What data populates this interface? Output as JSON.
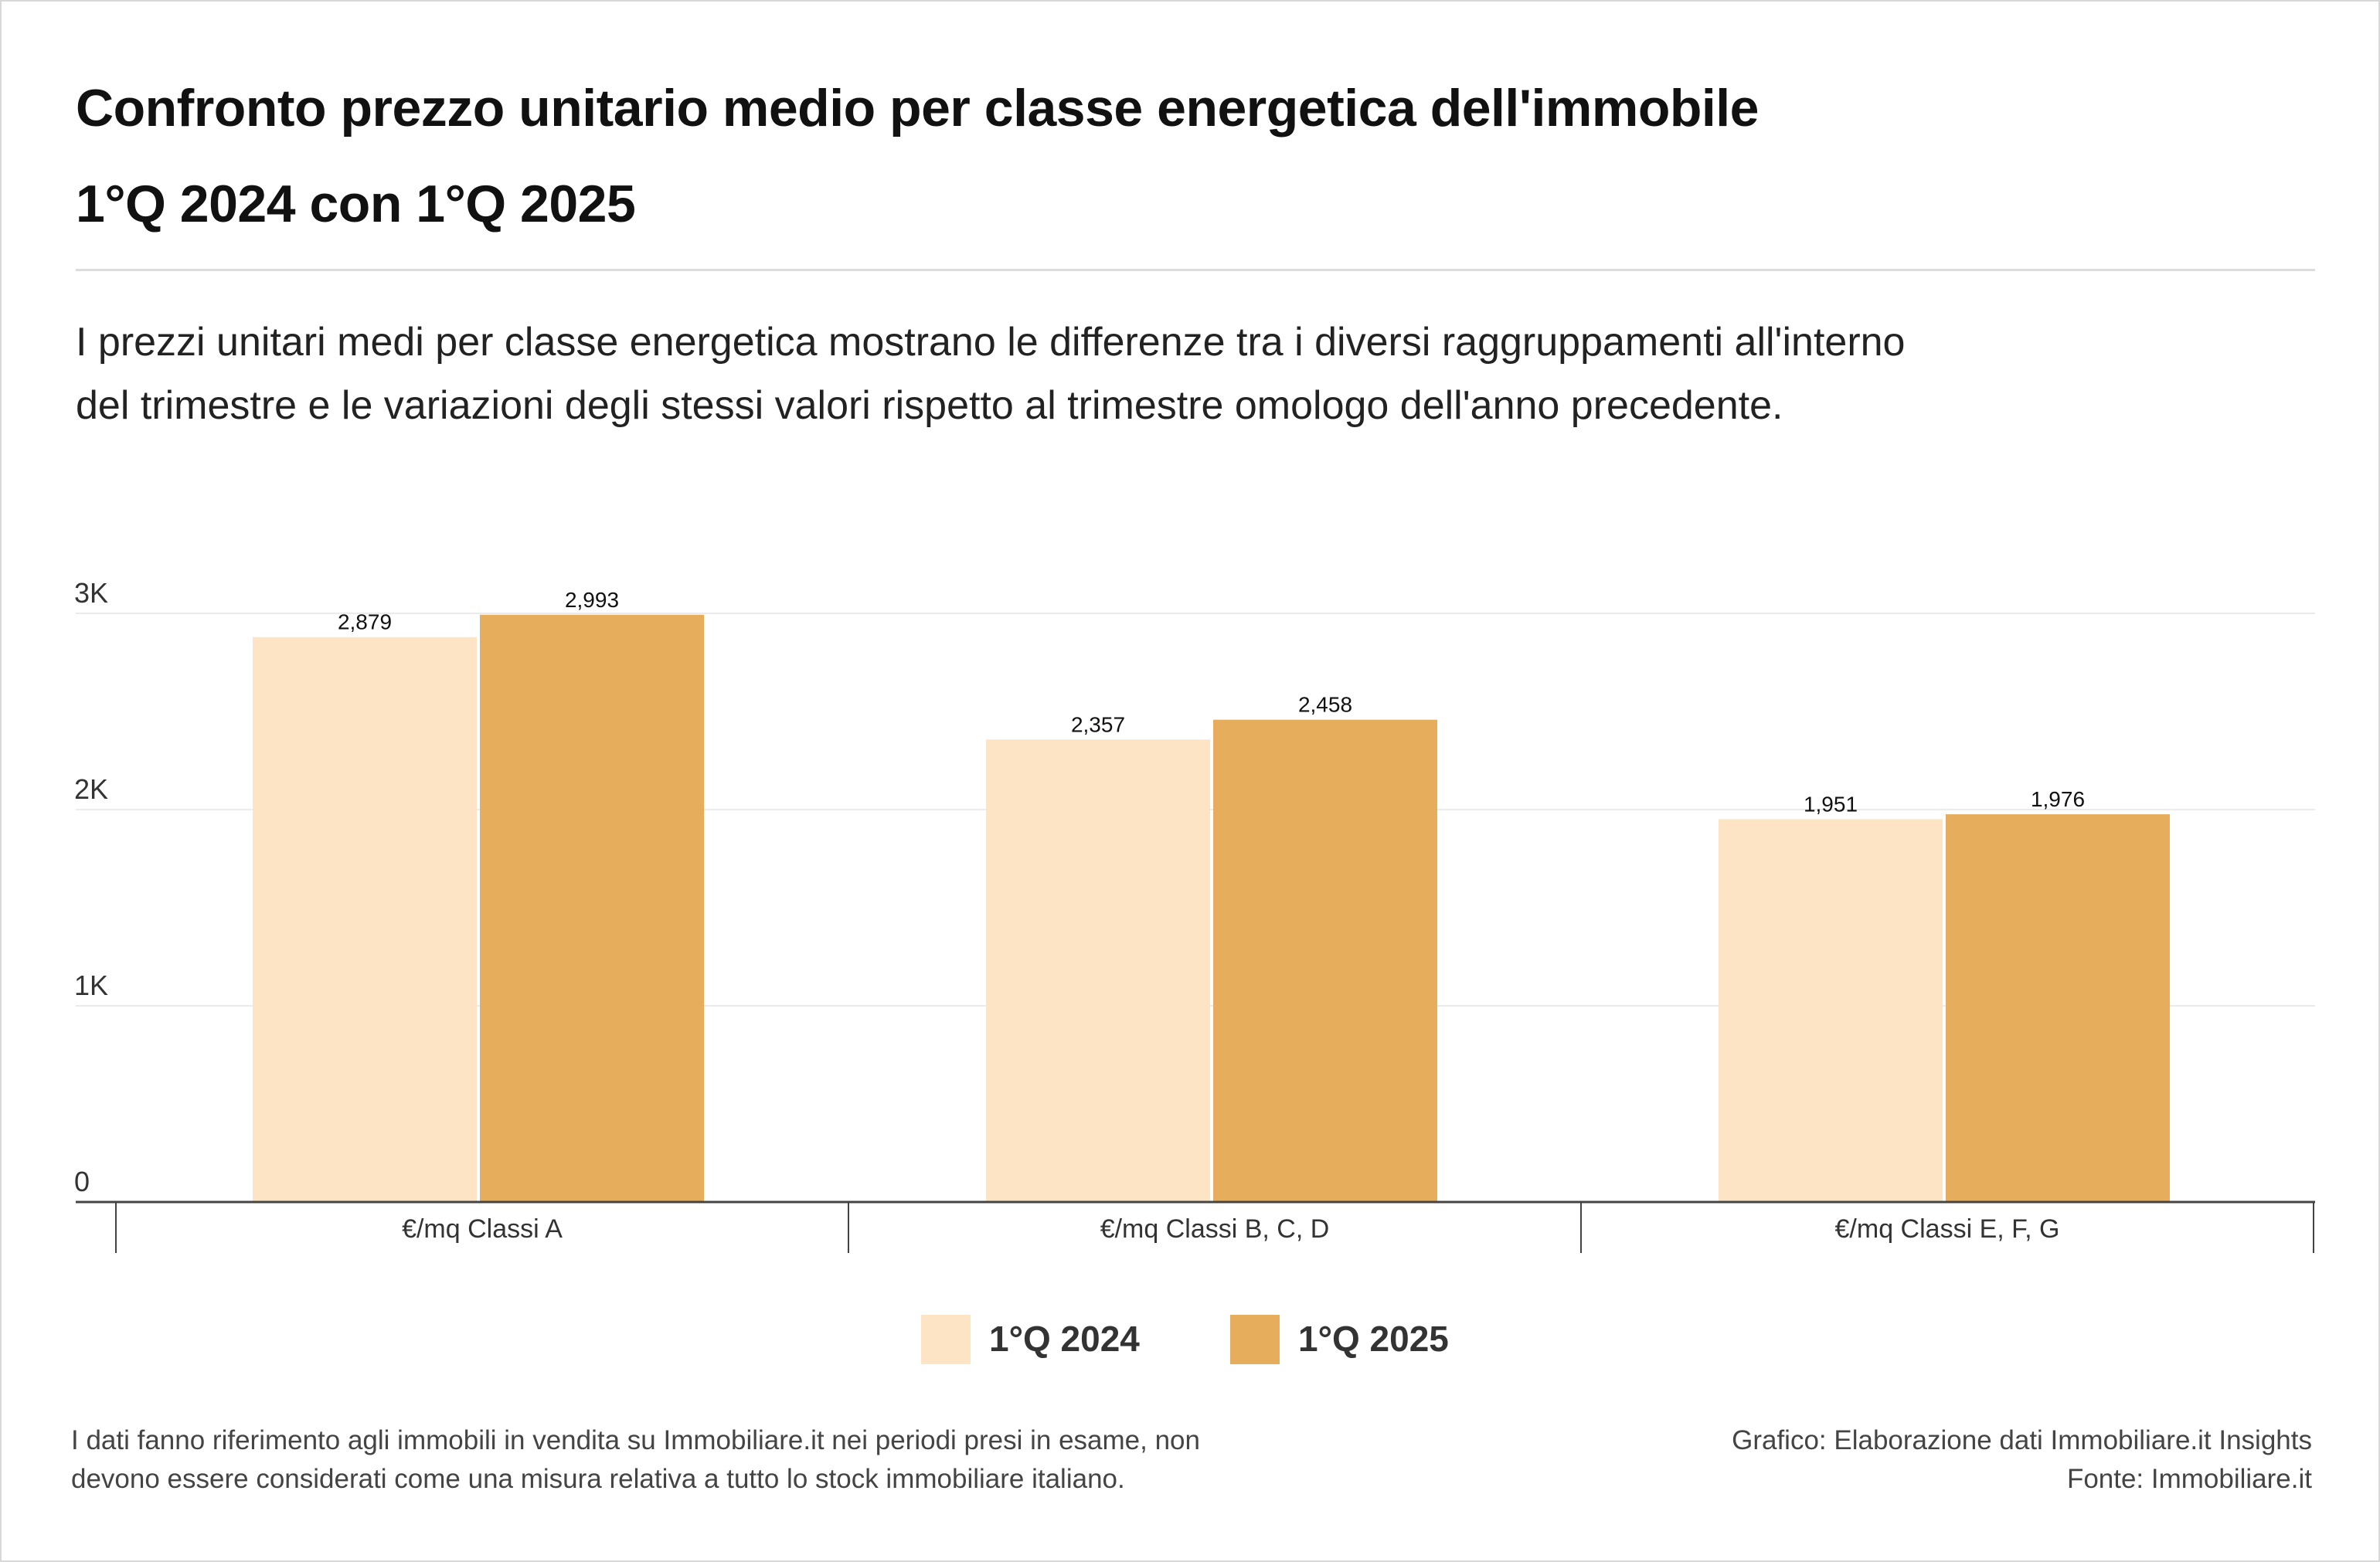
{
  "header": {
    "title_line1": "Confronto prezzo unitario medio per classe energetica dell'immobile",
    "title_line2": "1°Q 2024 con 1°Q 2025",
    "subtitle_line1": "I prezzi unitari medi per classe energetica mostrano le differenze tra i diversi raggruppamenti all'interno",
    "subtitle_line2": "del trimestre e le variazioni degli stessi valori rispetto al trimestre omologo dell'anno precedente."
  },
  "chart_data": {
    "type": "bar",
    "title": "Confronto prezzo unitario medio per classe energetica dell'immobile",
    "categories": [
      "€/mq Classi A",
      "€/mq Classi B, C, D",
      "€/mq Classi E, F, G"
    ],
    "series": [
      {
        "name": "1°Q 2024",
        "values": [
          2879,
          2357,
          1951
        ],
        "labels": [
          "2,879",
          "2,357",
          "1,951"
        ],
        "color": "#fce4c4"
      },
      {
        "name": "1°Q 2025",
        "values": [
          2993,
          2458,
          1976
        ],
        "labels": [
          "2,993",
          "2,458",
          "1,976"
        ],
        "color": "#e5ad5c"
      }
    ],
    "ylim": [
      0,
      3000
    ],
    "yticks": [
      {
        "value": 0,
        "label": "0"
      },
      {
        "value": 1000,
        "label": "1K"
      },
      {
        "value": 2000,
        "label": "2K"
      },
      {
        "value": 3000,
        "label": "3K"
      }
    ],
    "xlabel": "",
    "ylabel": "",
    "grid": true,
    "legend_position": "bottom-center"
  },
  "legend": [
    {
      "label": "1°Q 2024",
      "color": "#fce4c4"
    },
    {
      "label": "1°Q 2025",
      "color": "#e5ad5c"
    }
  ],
  "footer": {
    "note_line1": "I dati fanno riferimento agli immobili in vendita su Immobiliare.it nei periodi presi in esame, non",
    "note_line2": "devono essere considerati come una misura relativa a tutto lo stock immobiliare italiano.",
    "credit_line1": "Grafico: Elaborazione dati Immobiliare.it Insights",
    "credit_line2": "Fonte: Immobiliare.it"
  }
}
